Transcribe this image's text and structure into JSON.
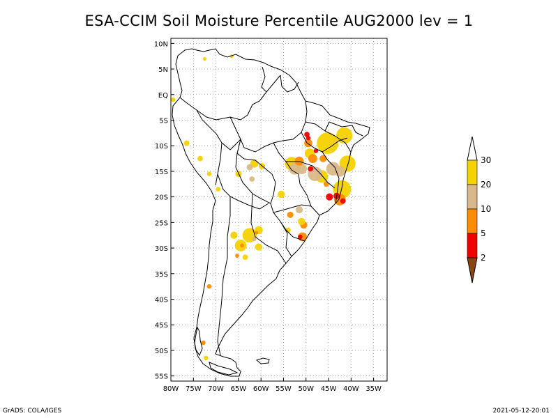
{
  "title": "ESA-CCIM Soil Moisture Percentile AUG2000 lev = 1",
  "credit": "GrADS: COLA/IGES",
  "timestamp": "2021-05-12-20:01",
  "map": {
    "lon_range": [
      -80,
      -32
    ],
    "lat_range": [
      -56,
      11
    ],
    "lat_ticks": [
      {
        "value": 10,
        "label": "10N"
      },
      {
        "value": 5,
        "label": "5N"
      },
      {
        "value": 0,
        "label": "EQ"
      },
      {
        "value": -5,
        "label": "5S"
      },
      {
        "value": -10,
        "label": "10S"
      },
      {
        "value": -15,
        "label": "15S"
      },
      {
        "value": -20,
        "label": "20S"
      },
      {
        "value": -25,
        "label": "25S"
      },
      {
        "value": -30,
        "label": "30S"
      },
      {
        "value": -35,
        "label": "35S"
      },
      {
        "value": -40,
        "label": "40S"
      },
      {
        "value": -45,
        "label": "45S"
      },
      {
        "value": -50,
        "label": "50S"
      },
      {
        "value": -55,
        "label": "55S"
      }
    ],
    "lon_ticks": [
      {
        "value": -80,
        "label": "80W"
      },
      {
        "value": -75,
        "label": "75W"
      },
      {
        "value": -70,
        "label": "70W"
      },
      {
        "value": -65,
        "label": "65W"
      },
      {
        "value": -60,
        "label": "60W"
      },
      {
        "value": -55,
        "label": "55W"
      },
      {
        "value": -50,
        "label": "50W"
      },
      {
        "value": -45,
        "label": "45W"
      },
      {
        "value": -40,
        "label": "40W"
      },
      {
        "value": -35,
        "label": "35W"
      }
    ],
    "grid": true
  },
  "legend": {
    "bins": [
      {
        "from": 20,
        "to": 30,
        "color": "#f5d200"
      },
      {
        "from": 10,
        "to": 20,
        "color": "#d9b98a"
      },
      {
        "from": 5,
        "to": 10,
        "color": "#ff8c00"
      },
      {
        "from": 2,
        "to": 5,
        "color": "#f00000"
      }
    ],
    "above_color": "#ffffff",
    "below_color": "#8b4513",
    "labels": [
      "30",
      "20",
      "10",
      "5",
      "2"
    ]
  },
  "patches": [
    {
      "lon": -45.2,
      "lat": -9.5,
      "r": 2.4,
      "color": "#f5d200"
    },
    {
      "lon": -41.5,
      "lat": -8.0,
      "r": 1.8,
      "color": "#f5d200"
    },
    {
      "lon": -40.8,
      "lat": -13.5,
      "r": 1.8,
      "color": "#f5d200"
    },
    {
      "lon": -42.0,
      "lat": -18.5,
      "r": 2.0,
      "color": "#f5d200"
    },
    {
      "lon": -46.5,
      "lat": -16.0,
      "r": 1.4,
      "color": "#f5d200"
    },
    {
      "lon": -49.2,
      "lat": -11.5,
      "r": 1.1,
      "color": "#f5d200"
    },
    {
      "lon": -48.0,
      "lat": -15.5,
      "r": 1.6,
      "color": "#d9b98a"
    },
    {
      "lon": -44.0,
      "lat": -14.5,
      "r": 1.5,
      "color": "#d9b98a"
    },
    {
      "lon": -42.5,
      "lat": -15.0,
      "r": 1.2,
      "color": "#d9b98a"
    },
    {
      "lon": -51.0,
      "lat": -14.5,
      "r": 1.2,
      "color": "#d9b98a"
    },
    {
      "lon": -53.2,
      "lat": -13.5,
      "r": 1.5,
      "color": "#f5d200"
    },
    {
      "lon": -52.5,
      "lat": -14.5,
      "r": 1.3,
      "color": "#d9b98a"
    },
    {
      "lon": -51.5,
      "lat": -13.0,
      "r": 1.0,
      "color": "#ff8c00"
    },
    {
      "lon": -48.5,
      "lat": -12.5,
      "r": 1.0,
      "color": "#ff8c00"
    },
    {
      "lon": -49.5,
      "lat": -9.5,
      "r": 0.9,
      "color": "#ff8c00"
    },
    {
      "lon": -46.2,
      "lat": -12.5,
      "r": 0.8,
      "color": "#ff8c00"
    },
    {
      "lon": -49.8,
      "lat": -7.8,
      "r": 0.6,
      "color": "#f00000"
    },
    {
      "lon": -49.5,
      "lat": -8.5,
      "r": 0.5,
      "color": "#f00000"
    },
    {
      "lon": -47.8,
      "lat": -11.0,
      "r": 0.5,
      "color": "#f00000"
    },
    {
      "lon": -49.0,
      "lat": -14.5,
      "r": 0.6,
      "color": "#f00000"
    },
    {
      "lon": -42.5,
      "lat": -20.5,
      "r": 1.3,
      "color": "#ff8c00"
    },
    {
      "lon": -44.8,
      "lat": -20.0,
      "r": 0.8,
      "color": "#f00000"
    },
    {
      "lon": -43.2,
      "lat": -19.8,
      "r": 0.7,
      "color": "#f00000"
    },
    {
      "lon": -41.8,
      "lat": -20.8,
      "r": 0.6,
      "color": "#f00000"
    },
    {
      "lon": -45.5,
      "lat": -17.5,
      "r": 0.6,
      "color": "#ff8c00"
    },
    {
      "lon": -55.5,
      "lat": -19.5,
      "r": 0.8,
      "color": "#f5d200"
    },
    {
      "lon": -53.5,
      "lat": -23.5,
      "r": 0.7,
      "color": "#ff8c00"
    },
    {
      "lon": -51.5,
      "lat": -22.5,
      "r": 0.8,
      "color": "#d9b98a"
    },
    {
      "lon": -50.5,
      "lat": -25.5,
      "r": 0.8,
      "color": "#ff8c00"
    },
    {
      "lon": -51.0,
      "lat": -24.8,
      "r": 0.8,
      "color": "#f5d200"
    },
    {
      "lon": -50.8,
      "lat": -27.8,
      "r": 1.0,
      "color": "#ff8c00"
    },
    {
      "lon": -51.3,
      "lat": -27.8,
      "r": 0.5,
      "color": "#f00000"
    },
    {
      "lon": -54.0,
      "lat": -26.5,
      "r": 0.6,
      "color": "#f5d200"
    },
    {
      "lon": -61.5,
      "lat": -13.5,
      "r": 0.9,
      "color": "#f5d200"
    },
    {
      "lon": -62.5,
      "lat": -14.2,
      "r": 0.7,
      "color": "#d9b98a"
    },
    {
      "lon": -59.8,
      "lat": -14.0,
      "r": 0.7,
      "color": "#f5d200"
    },
    {
      "lon": -65.0,
      "lat": -15.5,
      "r": 0.7,
      "color": "#f5d200"
    },
    {
      "lon": -62.0,
      "lat": -16.5,
      "r": 0.6,
      "color": "#d9b98a"
    },
    {
      "lon": -62.5,
      "lat": -27.5,
      "r": 1.6,
      "color": "#f5d200"
    },
    {
      "lon": -64.5,
      "lat": -29.5,
      "r": 1.3,
      "color": "#f5d200"
    },
    {
      "lon": -66.0,
      "lat": -27.5,
      "r": 0.8,
      "color": "#f5d200"
    },
    {
      "lon": -60.5,
      "lat": -26.5,
      "r": 0.9,
      "color": "#f5d200"
    },
    {
      "lon": -60.5,
      "lat": -29.8,
      "r": 0.8,
      "color": "#f5d200"
    },
    {
      "lon": -63.5,
      "lat": -31.8,
      "r": 0.6,
      "color": "#f5d200"
    },
    {
      "lon": -61.5,
      "lat": -28.2,
      "r": 0.5,
      "color": "#d9b98a"
    },
    {
      "lon": -64.2,
      "lat": -29.5,
      "r": 0.45,
      "color": "#ff8c00"
    },
    {
      "lon": -61.0,
      "lat": -27.0,
      "r": 0.4,
      "color": "#ff8c00"
    },
    {
      "lon": -65.3,
      "lat": -31.5,
      "r": 0.45,
      "color": "#ff8c00"
    },
    {
      "lon": -76.5,
      "lat": -9.5,
      "r": 0.6,
      "color": "#f5d200"
    },
    {
      "lon": -73.5,
      "lat": -12.5,
      "r": 0.6,
      "color": "#f5d200"
    },
    {
      "lon": -71.5,
      "lat": -15.5,
      "r": 0.5,
      "color": "#f5d200"
    },
    {
      "lon": -69.5,
      "lat": -18.5,
      "r": 0.5,
      "color": "#f5d200"
    },
    {
      "lon": -79.5,
      "lat": -1.0,
      "r": 0.5,
      "color": "#f5d200"
    },
    {
      "lon": -66.5,
      "lat": 7.5,
      "r": 0.4,
      "color": "#f5d200"
    },
    {
      "lon": -72.5,
      "lat": 7.0,
      "r": 0.4,
      "color": "#f5d200"
    },
    {
      "lon": -71.5,
      "lat": -37.5,
      "r": 0.5,
      "color": "#ff8c00"
    },
    {
      "lon": -72.8,
      "lat": -48.5,
      "r": 0.5,
      "color": "#ff8c00"
    },
    {
      "lon": -72.2,
      "lat": -51.5,
      "r": 0.5,
      "color": "#f5d200"
    }
  ]
}
